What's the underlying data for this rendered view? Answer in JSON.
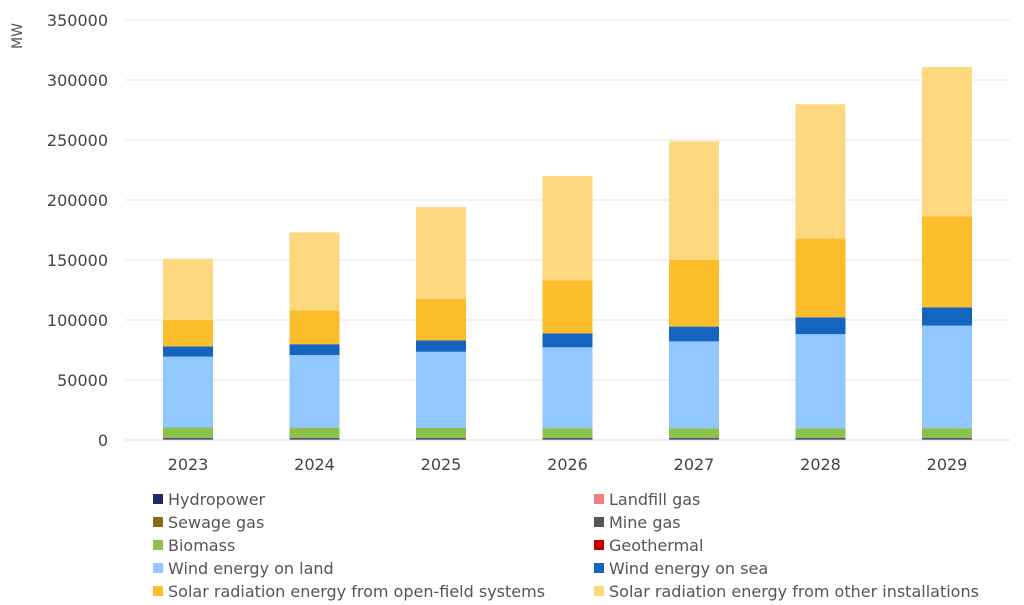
{
  "chart_data": {
    "type": "bar",
    "stacked": true,
    "unit_label": "MW",
    "categories": [
      "2023",
      "2024",
      "2025",
      "2026",
      "2027",
      "2028",
      "2029"
    ],
    "ylim": [
      0,
      350000
    ],
    "y_ticks": [
      0,
      50000,
      100000,
      150000,
      200000,
      250000,
      300000,
      350000
    ],
    "grid": true,
    "legend_position": "bottom",
    "series": [
      {
        "name": "Hydropower",
        "color": "#1f2a6b",
        "values": [
          1500,
          1500,
          1500,
          1500,
          1500,
          1500,
          1500
        ]
      },
      {
        "name": "Landfill gas",
        "color": "#f08080",
        "values": [
          100,
          100,
          100,
          100,
          100,
          100,
          100
        ]
      },
      {
        "name": "Sewage gas",
        "color": "#8b6a1a",
        "values": [
          200,
          200,
          200,
          200,
          200,
          200,
          200
        ]
      },
      {
        "name": "Mine gas",
        "color": "#555555",
        "values": [
          100,
          100,
          100,
          100,
          100,
          100,
          100
        ]
      },
      {
        "name": "Biomass",
        "color": "#8bc34a",
        "values": [
          8500,
          8300,
          8000,
          7800,
          7700,
          7700,
          7800
        ]
      },
      {
        "name": "Geothermal",
        "color": "#c00000",
        "values": [
          100,
          100,
          100,
          100,
          100,
          100,
          100
        ]
      },
      {
        "name": "Wind energy on land",
        "color": "#90c8ff",
        "values": [
          59000,
          60500,
          63500,
          67500,
          72500,
          78500,
          85500
        ]
      },
      {
        "name": "Wind energy on sea",
        "color": "#1565c0",
        "values": [
          8500,
          9000,
          9500,
          11500,
          12300,
          14000,
          15200
        ]
      },
      {
        "name": "Solar radiation energy from open-field systems",
        "color": "#fbbd2c",
        "values": [
          22000,
          28200,
          34500,
          44200,
          55500,
          65800,
          75900
        ]
      },
      {
        "name": "Solar radiation energy from other installations",
        "color": "#fed87e",
        "values": [
          51000,
          65000,
          76600,
          87000,
          99000,
          111800,
          124500
        ]
      }
    ]
  }
}
